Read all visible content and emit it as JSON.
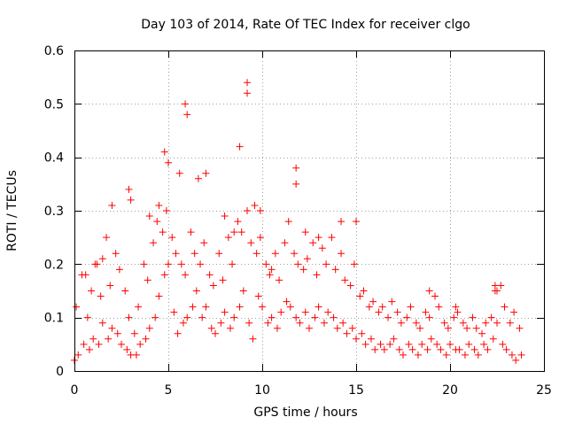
{
  "chart_data": {
    "type": "scatter",
    "title": "Day 103 of 2014, Rate Of TEC Index for receiver clgo",
    "xlabel": "GPS time / hours",
    "ylabel": "ROTI / TECUs",
    "xlim": [
      0,
      25
    ],
    "ylim": [
      0,
      0.6
    ],
    "xticks": [
      0,
      5,
      10,
      15,
      20,
      25
    ],
    "yticks": [
      0,
      0.1,
      0.2,
      0.3,
      0.4,
      0.5,
      0.6
    ],
    "grid": true,
    "marker": "+",
    "marker_color": "#ff0000",
    "series": [
      {
        "x": [
          0.0,
          0.2,
          0.5,
          0.8,
          1.0,
          1.3,
          1.5,
          1.8,
          2.0,
          2.3,
          2.5,
          2.8,
          3.0,
          3.3,
          3.5,
          3.8,
          4.0,
          4.3,
          4.5,
          4.8,
          5.0,
          5.3,
          5.5,
          5.8,
          6.0,
          6.3,
          6.5,
          6.8,
          7.0,
          7.3,
          7.5,
          7.8,
          8.0,
          8.3,
          8.5,
          8.8,
          9.0,
          9.3,
          9.5,
          9.8,
          10.0,
          10.3,
          10.5,
          10.8,
          11.0,
          11.3,
          11.5,
          11.8,
          12.0,
          12.3,
          12.5,
          12.8,
          13.0,
          13.3,
          13.5,
          13.8,
          14.0,
          14.3,
          14.5,
          14.8,
          15.0,
          15.3,
          15.5,
          15.8,
          16.0,
          16.3,
          16.5,
          16.8,
          17.0,
          17.3,
          17.5,
          17.8,
          18.0,
          18.3,
          18.5,
          18.8,
          19.0,
          19.3,
          19.5,
          19.8,
          20.0,
          20.3,
          20.5,
          20.8,
          21.0,
          21.3,
          21.5,
          21.8,
          22.0,
          22.3,
          22.5,
          22.8,
          23.0,
          23.3,
          23.5,
          23.8,
          0.1,
          0.4,
          0.7,
          0.9,
          1.2,
          1.4,
          1.7,
          1.9,
          2.2,
          2.4,
          2.7,
          2.9,
          3.2,
          3.4,
          3.7,
          3.9,
          4.2,
          4.4,
          4.7,
          4.9,
          5.2,
          5.4,
          5.7,
          5.9,
          6.2,
          6.4,
          6.7,
          6.9,
          7.2,
          7.4,
          7.7,
          7.9,
          8.2,
          8.4,
          8.7,
          8.9,
          9.2,
          9.4,
          9.7,
          9.9,
          10.2,
          10.4,
          10.7,
          10.9,
          11.2,
          11.4,
          11.7,
          11.9,
          12.2,
          12.4,
          12.7,
          12.9,
          13.2,
          13.4,
          13.7,
          13.9,
          14.2,
          14.4,
          14.7,
          14.9,
          15.2,
          15.4,
          15.7,
          15.9,
          16.2,
          16.4,
          16.7,
          16.9,
          17.2,
          17.4,
          17.7,
          17.9,
          18.2,
          18.4,
          18.7,
          18.9,
          19.2,
          19.4,
          19.7,
          19.9,
          20.2,
          20.4,
          20.7,
          20.9,
          21.2,
          21.4,
          21.7,
          21.9,
          22.2,
          22.4,
          22.7,
          22.9,
          23.2,
          23.4,
          23.7,
          5.9,
          6.0,
          9.2,
          9.2,
          11.8,
          11.8,
          4.8,
          5.0,
          8.8,
          2.9,
          2.0,
          22.4,
          22.5,
          9.6,
          9.9,
          7.0,
          5.6,
          6.6,
          15.0,
          14.2,
          13.0,
          8.0,
          8.5,
          4.5,
          4.0,
          3.0,
          1.1,
          1.5,
          0.6,
          12.3,
          10.5,
          18.9,
          20.3
        ],
        "y": [
          0.02,
          0.03,
          0.05,
          0.04,
          0.06,
          0.05,
          0.09,
          0.06,
          0.08,
          0.07,
          0.05,
          0.04,
          0.03,
          0.03,
          0.05,
          0.06,
          0.08,
          0.1,
          0.14,
          0.18,
          0.2,
          0.11,
          0.07,
          0.09,
          0.1,
          0.12,
          0.15,
          0.1,
          0.12,
          0.08,
          0.07,
          0.09,
          0.11,
          0.08,
          0.1,
          0.12,
          0.15,
          0.09,
          0.06,
          0.14,
          0.12,
          0.09,
          0.1,
          0.08,
          0.11,
          0.13,
          0.12,
          0.1,
          0.09,
          0.11,
          0.08,
          0.1,
          0.12,
          0.09,
          0.11,
          0.1,
          0.08,
          0.09,
          0.07,
          0.08,
          0.06,
          0.07,
          0.05,
          0.06,
          0.04,
          0.05,
          0.04,
          0.05,
          0.06,
          0.04,
          0.03,
          0.05,
          0.04,
          0.03,
          0.05,
          0.04,
          0.06,
          0.05,
          0.04,
          0.03,
          0.05,
          0.04,
          0.04,
          0.03,
          0.05,
          0.04,
          0.03,
          0.05,
          0.04,
          0.06,
          0.09,
          0.05,
          0.04,
          0.03,
          0.02,
          0.03,
          0.12,
          0.18,
          0.1,
          0.15,
          0.2,
          0.14,
          0.25,
          0.16,
          0.22,
          0.19,
          0.15,
          0.1,
          0.07,
          0.12,
          0.2,
          0.17,
          0.24,
          0.28,
          0.26,
          0.3,
          0.25,
          0.22,
          0.2,
          0.18,
          0.26,
          0.22,
          0.2,
          0.24,
          0.18,
          0.16,
          0.22,
          0.17,
          0.25,
          0.2,
          0.28,
          0.26,
          0.3,
          0.24,
          0.22,
          0.25,
          0.2,
          0.18,
          0.22,
          0.17,
          0.24,
          0.28,
          0.22,
          0.2,
          0.19,
          0.21,
          0.24,
          0.18,
          0.23,
          0.2,
          0.25,
          0.19,
          0.22,
          0.17,
          0.16,
          0.2,
          0.14,
          0.15,
          0.12,
          0.13,
          0.11,
          0.12,
          0.1,
          0.13,
          0.11,
          0.09,
          0.1,
          0.12,
          0.09,
          0.08,
          0.11,
          0.1,
          0.14,
          0.12,
          0.09,
          0.08,
          0.1,
          0.11,
          0.09,
          0.08,
          0.1,
          0.08,
          0.07,
          0.09,
          0.1,
          0.15,
          0.16,
          0.12,
          0.09,
          0.11,
          0.08,
          0.5,
          0.48,
          0.54,
          0.52,
          0.38,
          0.35,
          0.41,
          0.39,
          0.42,
          0.34,
          0.31,
          0.16,
          0.15,
          0.31,
          0.3,
          0.37,
          0.37,
          0.36,
          0.28,
          0.28,
          0.25,
          0.29,
          0.26,
          0.31,
          0.29,
          0.32,
          0.2,
          0.21,
          0.18,
          0.26,
          0.19,
          0.15,
          0.12
        ]
      }
    ]
  }
}
